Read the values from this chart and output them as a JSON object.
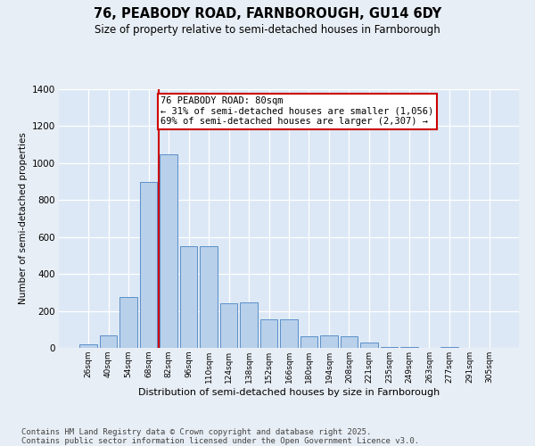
{
  "title_line1": "76, PEABODY ROAD, FARNBOROUGH, GU14 6DY",
  "title_line2": "Size of property relative to semi-detached houses in Farnborough",
  "xlabel": "Distribution of semi-detached houses by size in Farnborough",
  "ylabel": "Number of semi-detached properties",
  "bins": [
    "26sqm",
    "40sqm",
    "54sqm",
    "68sqm",
    "82sqm",
    "96sqm",
    "110sqm",
    "124sqm",
    "138sqm",
    "152sqm",
    "166sqm",
    "180sqm",
    "194sqm",
    "208sqm",
    "221sqm",
    "235sqm",
    "249sqm",
    "263sqm",
    "277sqm",
    "291sqm",
    "305sqm"
  ],
  "bar_values": [
    20,
    70,
    275,
    900,
    1050,
    550,
    550,
    240,
    245,
    155,
    155,
    65,
    70,
    65,
    30,
    5,
    5,
    0,
    5,
    0,
    0
  ],
  "bar_color": "#b8d0ea",
  "bar_edge_color": "#5b8fc9",
  "vline_color": "#cc0000",
  "annotation_text": "76 PEABODY ROAD: 80sqm\n← 31% of semi-detached houses are smaller (1,056)\n69% of semi-detached houses are larger (2,307) →",
  "annotation_box_color": "#ffffff",
  "annotation_box_edge_color": "#cc0000",
  "ylim": [
    0,
    1400
  ],
  "yticks": [
    0,
    200,
    400,
    600,
    800,
    1000,
    1200,
    1400
  ],
  "plot_bg_color": "#dce8f5",
  "fig_bg_color": "#e8eef5",
  "footer_text": "Contains HM Land Registry data © Crown copyright and database right 2025.\nContains public sector information licensed under the Open Government Licence v3.0.",
  "title_fontsize": 10.5,
  "subtitle_fontsize": 8.5,
  "annotation_fontsize": 7.5,
  "footer_fontsize": 6.5,
  "xlabel_fontsize": 8,
  "ylabel_fontsize": 7.5,
  "tick_fontsize": 6.5,
  "ytick_fontsize": 7.5
}
